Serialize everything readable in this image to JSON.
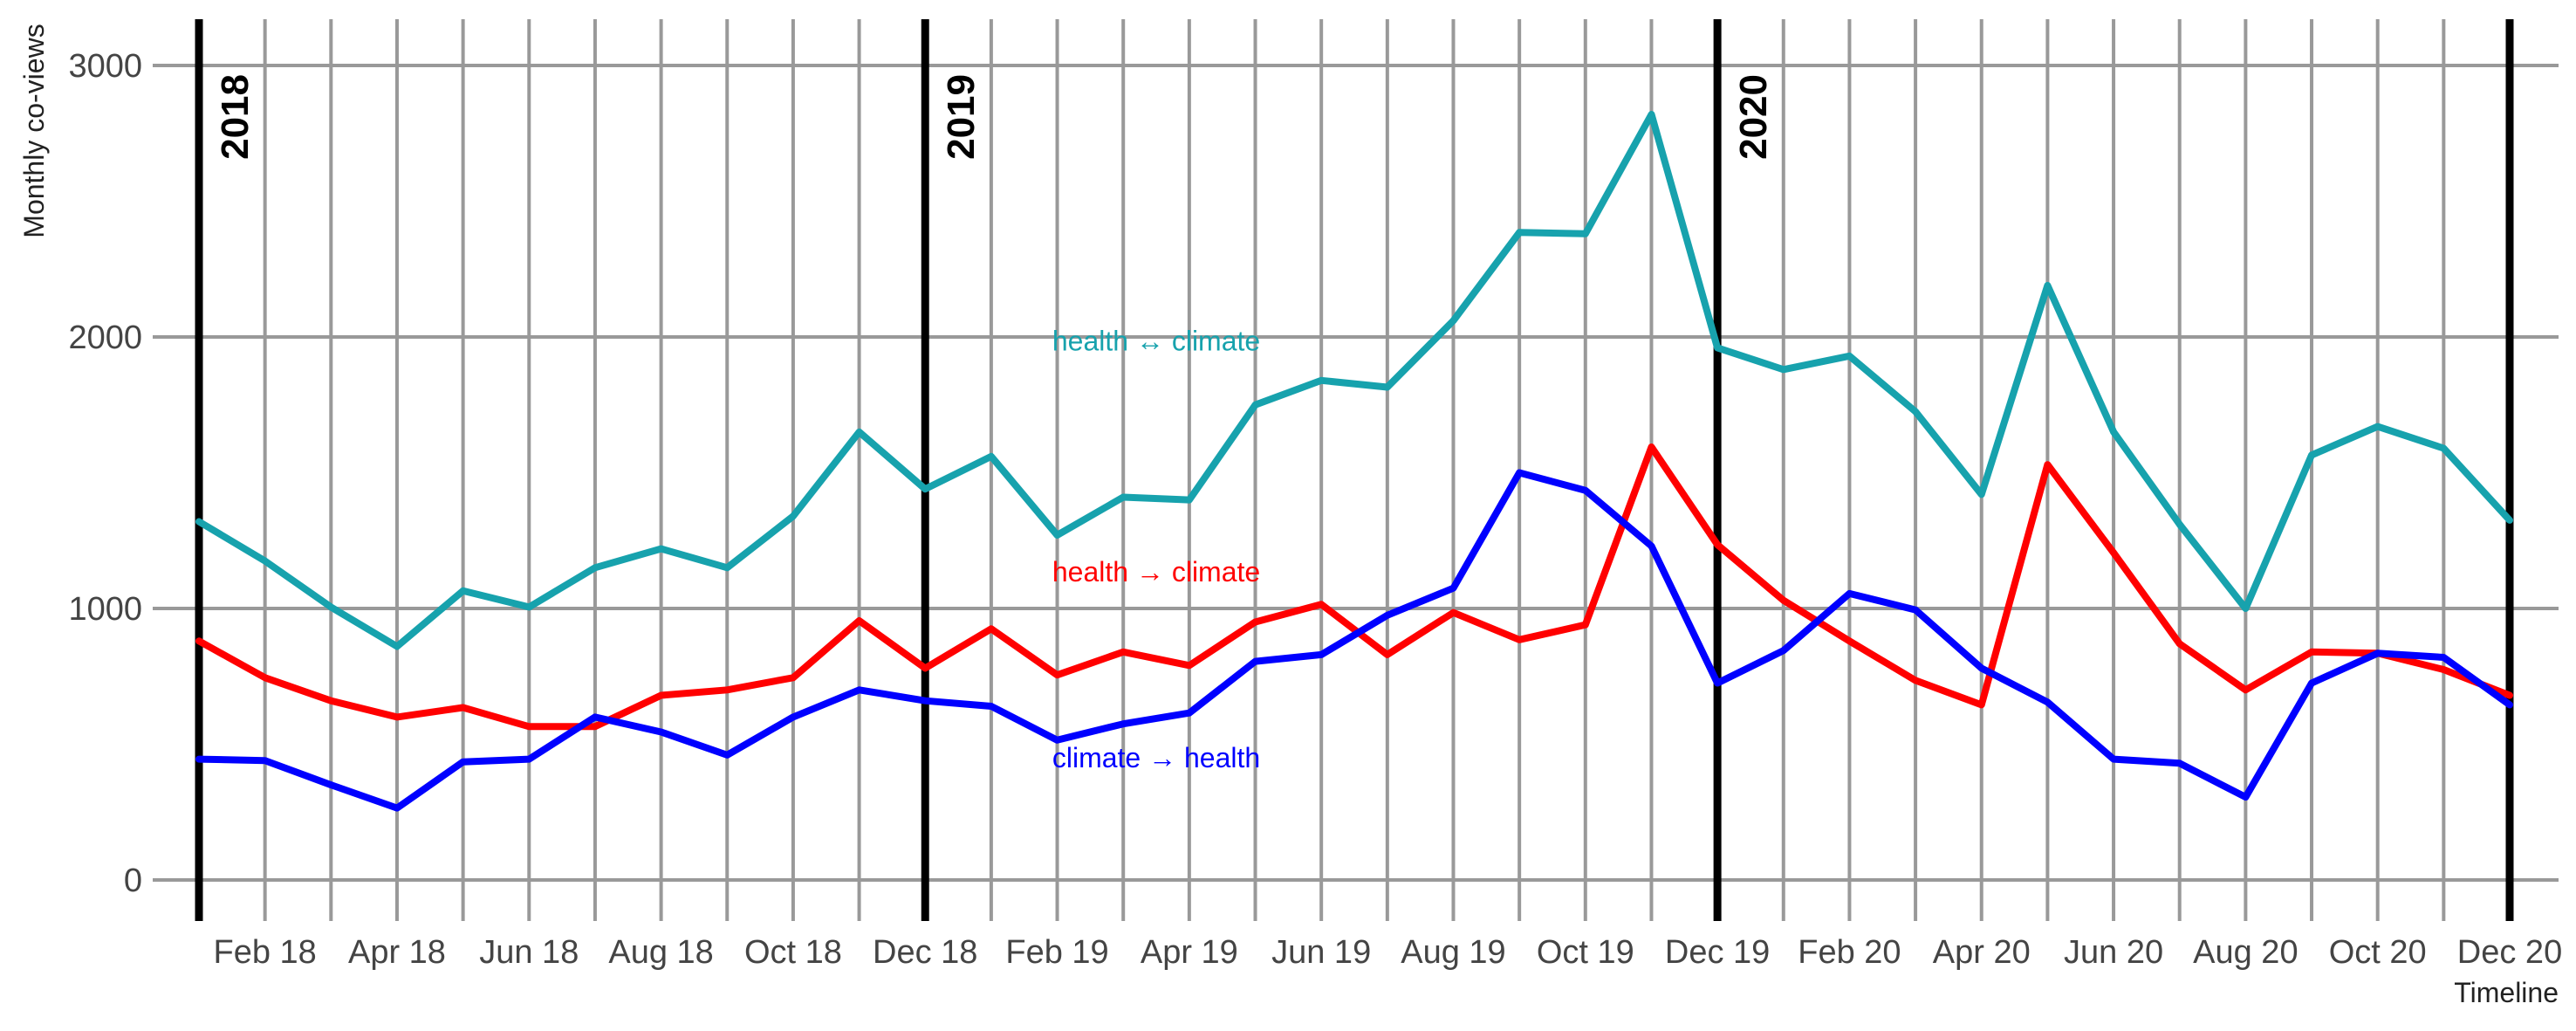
{
  "chart_data": {
    "type": "line",
    "title": "",
    "xlabel": "Timeline",
    "ylabel": "Monthly co-views",
    "ylim": [
      0,
      3000
    ],
    "yticks": [
      0,
      1000,
      2000,
      3000
    ],
    "grid": true,
    "x": [
      "Jan 18",
      "Feb 18",
      "Mar 18",
      "Apr 18",
      "May 18",
      "Jun 18",
      "Jul 18",
      "Aug 18",
      "Sep 18",
      "Oct 18",
      "Nov 18",
      "Dec 18",
      "Jan 19",
      "Feb 19",
      "Mar 19",
      "Apr 19",
      "May 19",
      "Jun 19",
      "Jul 19",
      "Aug 19",
      "Sep 19",
      "Oct 19",
      "Nov 19",
      "Dec 19",
      "Jan 20",
      "Feb 20",
      "Mar 20",
      "Apr 20",
      "May 20",
      "Jun 20",
      "Jul 20",
      "Aug 20",
      "Sep 20",
      "Oct 20",
      "Nov 20",
      "Dec 20"
    ],
    "xtick_labels": [
      "Feb 18",
      "Apr 18",
      "Jun 18",
      "Aug 18",
      "Oct 18",
      "Dec 18",
      "Feb 19",
      "Apr 19",
      "Jun 19",
      "Aug 19",
      "Oct 19",
      "Dec 19",
      "Feb 20",
      "Apr 20",
      "Jun 20",
      "Aug 20",
      "Oct 20",
      "Dec 20"
    ],
    "year_markers": [
      {
        "label": "2018",
        "index": 0
      },
      {
        "label": "2019",
        "index": 11
      },
      {
        "label": "2020",
        "index": 23
      },
      {
        "label": "",
        "index": 35
      }
    ],
    "series": [
      {
        "name": "health ↔ climate",
        "color": "#17a2ad",
        "label_index": 14.5,
        "label_value": 1950,
        "values": [
          1320,
          1175,
          1005,
          860,
          1065,
          1005,
          1150,
          1220,
          1150,
          1340,
          1650,
          1440,
          1560,
          1270,
          1410,
          1400,
          1750,
          1840,
          1815,
          2060,
          2385,
          2380,
          2820,
          1960,
          1880,
          1930,
          1725,
          1420,
          2190,
          1650,
          1310,
          1000,
          1565,
          1670,
          1590,
          1325
        ]
      },
      {
        "name": "health → climate",
        "color": "#ff0000",
        "label_index": 14.5,
        "label_value": 1100,
        "values": [
          880,
          745,
          660,
          600,
          635,
          565,
          565,
          680,
          700,
          745,
          955,
          780,
          925,
          755,
          840,
          790,
          950,
          1015,
          830,
          985,
          885,
          940,
          1595,
          1235,
          1030,
          880,
          735,
          645,
          1530,
          1205,
          870,
          700,
          840,
          835,
          775,
          680
        ]
      },
      {
        "name": "climate → health",
        "color": "#0000ff",
        "label_index": 14.5,
        "label_value": 415,
        "values": [
          445,
          440,
          350,
          265,
          435,
          445,
          600,
          545,
          460,
          600,
          700,
          660,
          640,
          515,
          575,
          615,
          805,
          830,
          975,
          1075,
          1500,
          1435,
          1230,
          725,
          845,
          1055,
          995,
          780,
          655,
          445,
          430,
          305,
          725,
          835,
          820,
          645
        ]
      }
    ]
  }
}
